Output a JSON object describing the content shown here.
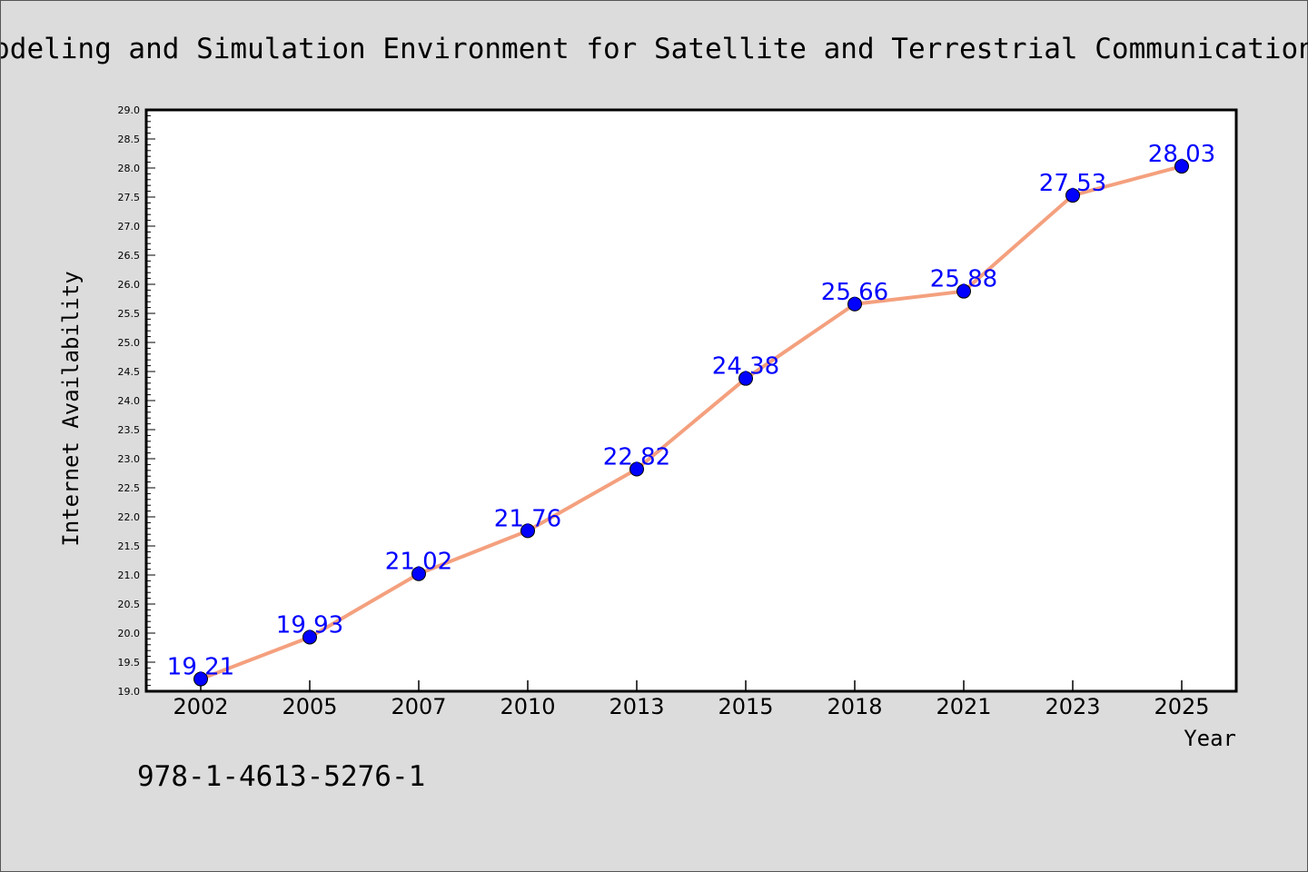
{
  "chart_data": {
    "type": "line",
    "title": "Modeling and Simulation Environment for Satellite and Terrestrial Communications",
    "xlabel": "Year",
    "ylabel": "Internet Availability",
    "categories": [
      "2002",
      "2005",
      "2007",
      "2010",
      "2013",
      "2015",
      "2018",
      "2021",
      "2023",
      "2025"
    ],
    "series": [
      {
        "values": [
          19.21,
          19.93,
          21.02,
          21.76,
          22.82,
          24.38,
          25.66,
          25.88,
          27.53,
          28.03
        ],
        "data_labels": [
          "19.21",
          "19.93",
          "21.02",
          "21.76",
          "22.82",
          "24.38",
          "25.66",
          "25.88",
          "27.53",
          "28.03"
        ]
      }
    ],
    "ylim": [
      19.0,
      29.0
    ],
    "yticks": [
      "19.0",
      "19.5",
      "20.0",
      "20.5",
      "21.0",
      "21.5",
      "22.0",
      "22.5",
      "23.0",
      "23.5",
      "24.0",
      "24.5",
      "25.0",
      "25.5",
      "26.0",
      "26.5",
      "27.0",
      "27.5",
      "28.0",
      "28.5",
      "29.0"
    ],
    "grid": false,
    "legend": "none",
    "line_color": "#f4a07e",
    "marker_color": "#0000ff",
    "label_color": "#0000ff"
  },
  "footnote": "978-1-4613-5276-1",
  "colors": {
    "background": "#dcdcdc",
    "plot_background": "#ffffff"
  }
}
